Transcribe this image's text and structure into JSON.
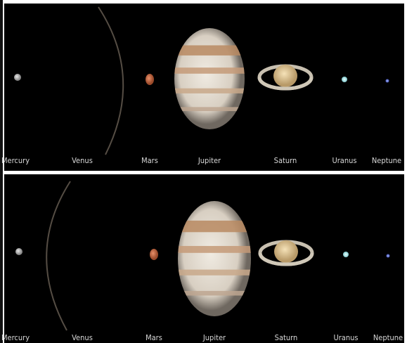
{
  "panels": [
    {
      "labels": [
        "Mercury",
        "Venus",
        "Mars",
        "Jupiter",
        "Saturn",
        "Uranus",
        "Neptune"
      ]
    },
    {
      "labels": [
        "Mercury",
        "Venus",
        "Mars",
        "Jupiter",
        "Saturn",
        "Uranus",
        "Neptune"
      ]
    }
  ]
}
